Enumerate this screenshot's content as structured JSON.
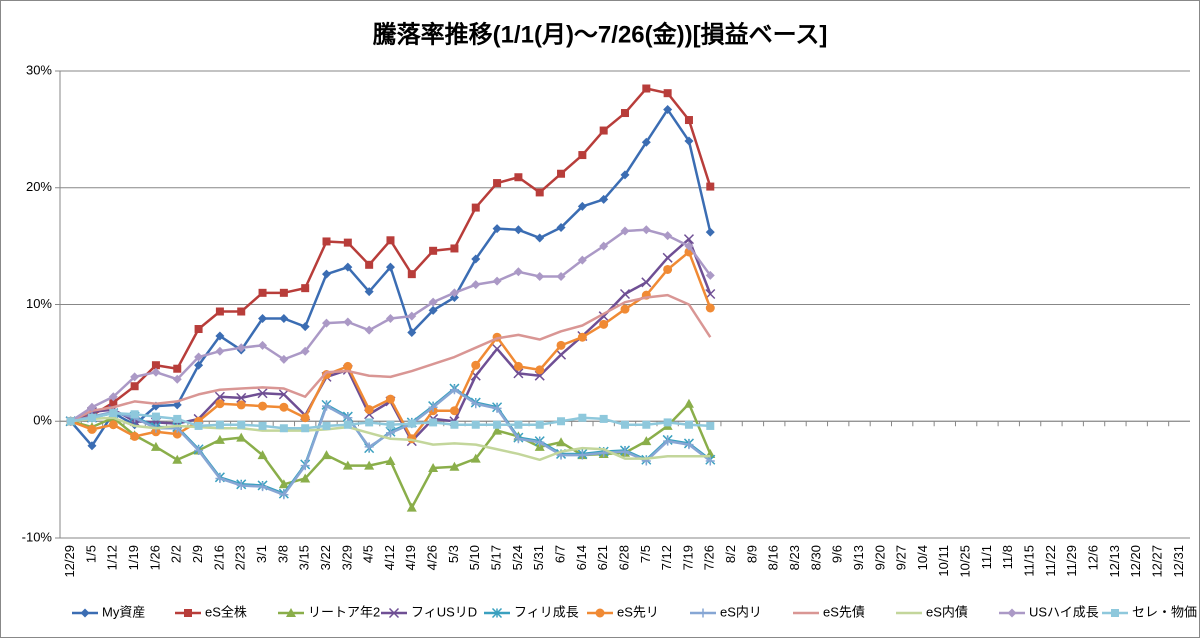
{
  "chart_data": {
    "type": "line",
    "title": "騰落率推移(1/1(月)〜7/26(金))[損益ベース]",
    "categories": [
      "12/29",
      "1/5",
      "1/12",
      "1/19",
      "1/26",
      "2/2",
      "2/9",
      "2/16",
      "2/23",
      "3/1",
      "3/8",
      "3/15",
      "3/22",
      "3/29",
      "4/5",
      "4/12",
      "4/19",
      "4/26",
      "5/3",
      "5/10",
      "5/17",
      "5/24",
      "5/31",
      "6/7",
      "6/14",
      "6/21",
      "6/28",
      "7/5",
      "7/12",
      "7/19",
      "7/26",
      "8/2",
      "8/9",
      "8/16",
      "8/23",
      "8/30",
      "9/6",
      "9/13",
      "9/20",
      "9/27",
      "10/4",
      "10/11",
      "10/25",
      "11/1",
      "11/8",
      "11/15",
      "11/22",
      "11/29",
      "12/6",
      "12/13",
      "12/20",
      "12/27",
      "12/31"
    ],
    "ylim": [
      -10,
      30
    ],
    "yticks": [
      {
        "value": -10,
        "label": "-10%"
      },
      {
        "value": 0,
        "label": "0%"
      },
      {
        "value": 10,
        "label": "10%"
      },
      {
        "value": 20,
        "label": "20%"
      },
      {
        "value": 30,
        "label": "30%"
      }
    ],
    "grid": true,
    "legend": "bottom",
    "series": [
      {
        "name": "My資産",
        "color": "#3b6db3",
        "marker": "diamond",
        "values": [
          0,
          -2.1,
          0.7,
          -0.3,
          1.3,
          1.4,
          4.8,
          7.3,
          6.1,
          8.8,
          8.8,
          8.1,
          12.6,
          13.2,
          11.1,
          13.2,
          7.6,
          9.5,
          10.6,
          13.9,
          16.5,
          16.4,
          15.7,
          16.6,
          18.4,
          19.0,
          21.1,
          23.9,
          26.7,
          24.0,
          16.2,
          null,
          null,
          null,
          null,
          null,
          null,
          null,
          null,
          null,
          null,
          null,
          null,
          null,
          null,
          null,
          null,
          null,
          null,
          null,
          null,
          null,
          null
        ]
      },
      {
        "name": "eS全株",
        "color": "#b83d3a",
        "marker": "square",
        "values": [
          0,
          0.5,
          1.6,
          3.0,
          4.8,
          4.5,
          7.9,
          9.4,
          9.4,
          11.0,
          11.0,
          11.4,
          15.4,
          15.3,
          13.4,
          15.5,
          12.6,
          14.6,
          14.8,
          18.3,
          20.4,
          20.9,
          19.6,
          21.2,
          22.8,
          24.9,
          26.4,
          28.5,
          28.1,
          25.8,
          20.1,
          null,
          null,
          null,
          null,
          null,
          null,
          null,
          null,
          null,
          null,
          null,
          null,
          null,
          null,
          null,
          null,
          null,
          null,
          null,
          null,
          null,
          null
        ]
      },
      {
        "name": "リートア年2",
        "color": "#8aae4a",
        "marker": "triangle",
        "values": [
          0,
          -0.5,
          0.3,
          -1.2,
          -2.2,
          -3.3,
          -2.5,
          -1.6,
          -1.4,
          -2.9,
          -5.4,
          -4.9,
          -2.9,
          -3.8,
          -3.8,
          -3.4,
          -7.4,
          -4.0,
          -3.9,
          -3.2,
          -0.8,
          -1.3,
          -2.2,
          -1.8,
          -2.9,
          -2.8,
          -2.7,
          -1.7,
          -0.4,
          1.5,
          -2.8,
          null,
          null,
          null,
          null,
          null,
          null,
          null,
          null,
          null,
          null,
          null,
          null,
          null,
          null,
          null,
          null,
          null,
          null,
          null,
          null,
          null,
          null
        ]
      },
      {
        "name": "フィUSリD",
        "color": "#6f4f94",
        "marker": "x",
        "values": [
          0,
          0.8,
          1.0,
          0.0,
          -0.1,
          -0.2,
          0.2,
          2.1,
          2.0,
          2.4,
          2.3,
          0.5,
          3.8,
          4.4,
          0.6,
          1.7,
          -1.7,
          0.2,
          0.0,
          3.9,
          6.2,
          4.1,
          3.9,
          5.7,
          7.3,
          9.0,
          10.9,
          11.9,
          14.0,
          15.6,
          10.9,
          null,
          null,
          null,
          null,
          null,
          null,
          null,
          null,
          null,
          null,
          null,
          null,
          null,
          null,
          null,
          null,
          null,
          null,
          null,
          null,
          null,
          null
        ]
      },
      {
        "name": "フィリ成長",
        "color": "#3aa0bf",
        "marker": "star",
        "values": [
          0,
          0.3,
          0.7,
          0.4,
          -0.5,
          -0.5,
          -2.4,
          -4.8,
          -5.4,
          -5.5,
          -6.2,
          -3.7,
          1.4,
          0.4,
          -2.3,
          -0.9,
          -0.1,
          1.3,
          2.8,
          1.6,
          1.2,
          -1.4,
          -1.7,
          -2.8,
          -2.8,
          -2.6,
          -2.5,
          -3.3,
          -1.6,
          -1.9,
          -3.3,
          null,
          null,
          null,
          null,
          null,
          null,
          null,
          null,
          null,
          null,
          null,
          null,
          null,
          null,
          null,
          null,
          null,
          null,
          null,
          null,
          null,
          null
        ]
      },
      {
        "name": "eS先リ",
        "color": "#f08a34",
        "marker": "circle",
        "values": [
          0,
          -0.7,
          -0.3,
          -1.3,
          -0.9,
          -1.1,
          0.0,
          1.5,
          1.4,
          1.3,
          1.2,
          0.3,
          4.0,
          4.7,
          1.0,
          1.9,
          -1.5,
          0.9,
          0.9,
          4.8,
          7.2,
          4.7,
          4.4,
          6.5,
          7.2,
          8.3,
          9.6,
          10.8,
          13.0,
          14.5,
          9.7,
          null,
          null,
          null,
          null,
          null,
          null,
          null,
          null,
          null,
          null,
          null,
          null,
          null,
          null,
          null,
          null,
          null,
          null,
          null,
          null,
          null,
          null
        ]
      },
      {
        "name": "eS内リ",
        "color": "#86a6d4",
        "marker": "plus",
        "values": [
          0,
          0.4,
          0.8,
          0.3,
          -0.6,
          -0.6,
          -2.5,
          -4.9,
          -5.5,
          -5.6,
          -6.3,
          -3.8,
          1.3,
          0.3,
          -2.2,
          -1.0,
          -0.2,
          1.2,
          2.7,
          1.5,
          1.1,
          -1.5,
          -1.8,
          -2.9,
          -2.9,
          -2.7,
          -2.6,
          -3.4,
          -1.7,
          -2.0,
          -3.4,
          null,
          null,
          null,
          null,
          null,
          null,
          null,
          null,
          null,
          null,
          null,
          null,
          null,
          null,
          null,
          null,
          null,
          null,
          null,
          null,
          null,
          null
        ]
      },
      {
        "name": "eS先債",
        "color": "#d99694",
        "marker": "none",
        "values": [
          0,
          0.9,
          1.2,
          1.7,
          1.5,
          1.7,
          2.3,
          2.7,
          2.8,
          2.9,
          2.8,
          2.1,
          4.2,
          4.3,
          3.9,
          3.8,
          4.3,
          4.9,
          5.5,
          6.3,
          7.1,
          7.4,
          7.0,
          7.7,
          8.2,
          9.2,
          10.2,
          10.6,
          10.8,
          10.0,
          7.2,
          null,
          null,
          null,
          null,
          null,
          null,
          null,
          null,
          null,
          null,
          null,
          null,
          null,
          null,
          null,
          null,
          null,
          null,
          null,
          null,
          null,
          null
        ]
      },
      {
        "name": "eS内債",
        "color": "#c3d69b",
        "marker": "none",
        "values": [
          0,
          0.2,
          0.3,
          -0.4,
          -0.6,
          -0.4,
          -0.5,
          -0.6,
          -0.6,
          -0.8,
          -0.8,
          -0.8,
          -0.7,
          -0.5,
          -1.0,
          -1.5,
          -1.6,
          -2.0,
          -1.9,
          -2.0,
          -2.4,
          -2.8,
          -3.3,
          -2.6,
          -2.3,
          -2.4,
          -3.2,
          -3.2,
          -3.0,
          -3.0,
          -3.0,
          null,
          null,
          null,
          null,
          null,
          null,
          null,
          null,
          null,
          null,
          null,
          null,
          null,
          null,
          null,
          null,
          null,
          null,
          null,
          null,
          null,
          null
        ]
      },
      {
        "name": "USハイ成長",
        "color": "#ab99c6",
        "marker": "diamond",
        "values": [
          0,
          1.2,
          2.1,
          3.8,
          4.2,
          3.6,
          5.5,
          6.0,
          6.3,
          6.5,
          5.3,
          6.0,
          8.4,
          8.5,
          7.8,
          8.8,
          9.0,
          10.2,
          11.0,
          11.7,
          12.0,
          12.8,
          12.4,
          12.4,
          13.8,
          15.0,
          16.3,
          16.4,
          15.9,
          15.0,
          12.5,
          null,
          null,
          null,
          null,
          null,
          null,
          null,
          null,
          null,
          null,
          null,
          null,
          null,
          null,
          null,
          null,
          null,
          null,
          null,
          null,
          null,
          null
        ]
      },
      {
        "name": "セレ・物価",
        "color": "#8ec8dc",
        "marker": "square",
        "values": [
          0,
          0.3,
          0.7,
          0.6,
          0.4,
          0.2,
          -0.4,
          -0.3,
          -0.3,
          -0.4,
          -0.6,
          -0.6,
          -0.4,
          -0.3,
          -0.1,
          -0.3,
          -0.2,
          -0.1,
          -0.3,
          -0.3,
          -0.3,
          -0.3,
          -0.3,
          0.0,
          0.3,
          0.2,
          -0.3,
          -0.3,
          -0.1,
          -0.3,
          -0.4,
          null,
          null,
          null,
          null,
          null,
          null,
          null,
          null,
          null,
          null,
          null,
          null,
          null,
          null,
          null,
          null,
          null,
          null,
          null,
          null,
          null,
          null
        ]
      }
    ]
  }
}
